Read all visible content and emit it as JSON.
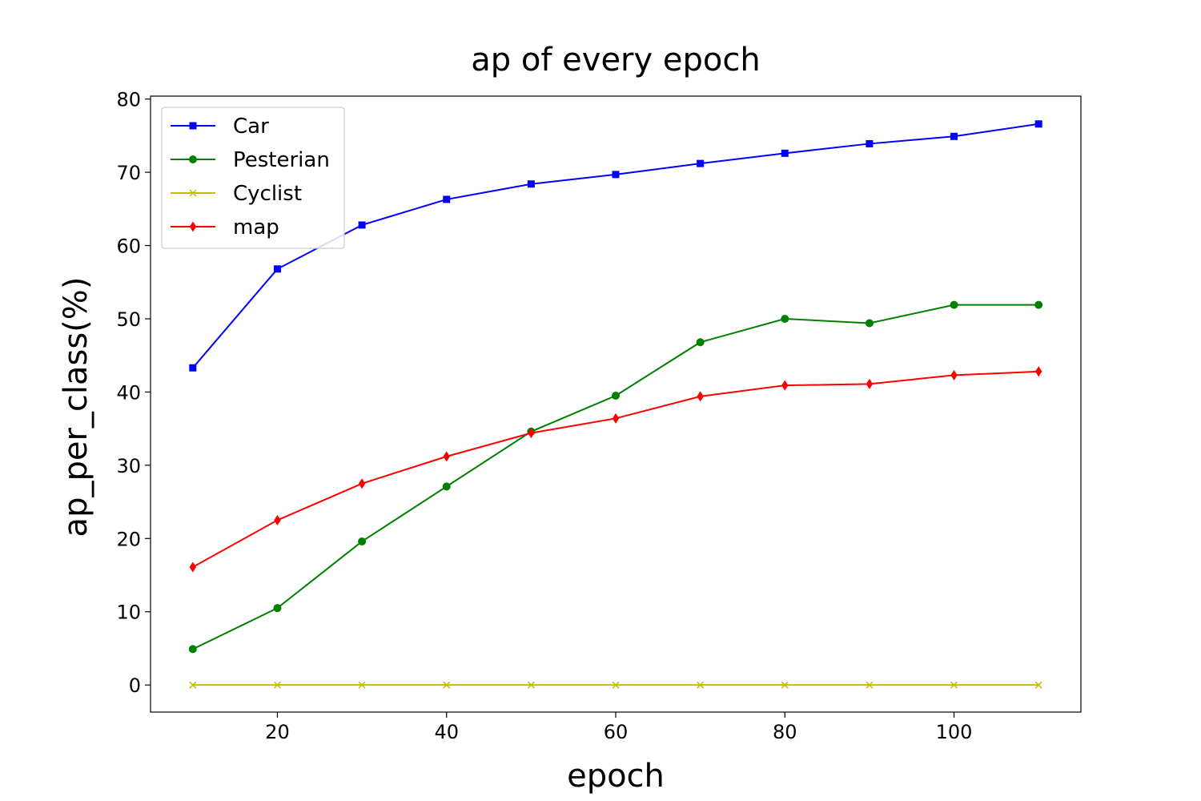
{
  "chart_data": {
    "type": "line",
    "title": "ap of every epoch",
    "xlabel": "epoch",
    "ylabel": "ap_per_class(%)",
    "xlim": [
      5,
      115
    ],
    "ylim": [
      -3.7,
      80.4
    ],
    "x_ticks": [
      20,
      40,
      60,
      80,
      100
    ],
    "y_ticks": [
      0,
      10,
      20,
      30,
      40,
      50,
      60,
      70,
      80
    ],
    "grid": false,
    "legend_position": "top-left",
    "x": [
      10,
      20,
      30,
      40,
      50,
      60,
      70,
      80,
      90,
      100,
      110
    ],
    "series": [
      {
        "name": "Car",
        "color": "#0000ff",
        "marker": "square",
        "values": [
          43.3,
          56.8,
          62.8,
          66.3,
          68.4,
          69.7,
          71.2,
          72.6,
          73.9,
          74.9,
          76.6
        ]
      },
      {
        "name": "Pesterian",
        "color": "#008000",
        "marker": "circle",
        "values": [
          4.9,
          10.5,
          19.6,
          27.1,
          34.6,
          39.5,
          46.8,
          50.0,
          49.4,
          51.9,
          51.9
        ]
      },
      {
        "name": "Cyclist",
        "color": "#bfbf00",
        "marker": "x",
        "values": [
          0,
          0,
          0,
          0,
          0,
          0,
          0,
          0,
          0,
          0,
          0
        ]
      },
      {
        "name": "map",
        "color": "#ff0000",
        "marker": "diamond",
        "values": [
          16.1,
          22.5,
          27.5,
          31.2,
          34.4,
          36.4,
          39.4,
          40.9,
          41.1,
          42.3,
          42.8
        ]
      }
    ]
  }
}
